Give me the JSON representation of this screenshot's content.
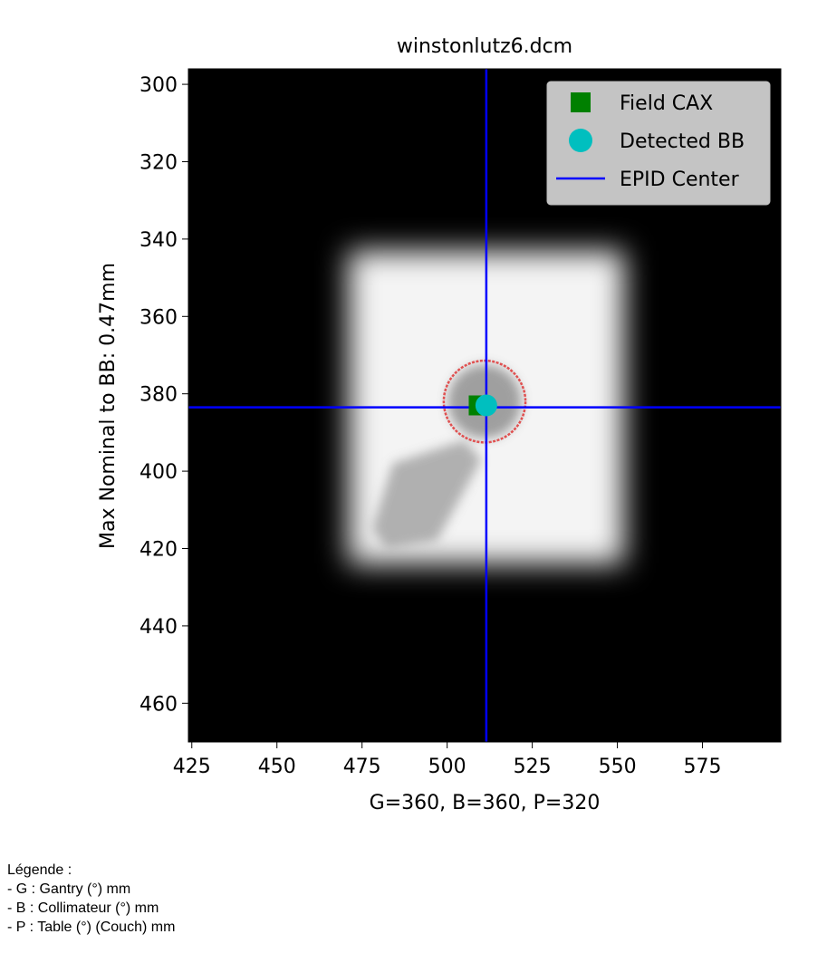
{
  "chart_data": {
    "type": "scatter",
    "title": "winstonlutz6.dcm",
    "xlabel": "G=360, B=360, P=320",
    "ylabel": "Max Nominal to BB: 0.47mm",
    "xlim": [
      424,
      598
    ],
    "ylim": [
      470,
      296
    ],
    "y_inverted": true,
    "xticks": [
      425,
      450,
      475,
      500,
      525,
      550,
      575
    ],
    "yticks": [
      300,
      320,
      340,
      360,
      380,
      400,
      420,
      440,
      460
    ],
    "image": {
      "description": "EPID field image: dark background, bright square radiation field",
      "field_x": [
        471,
        552
      ],
      "field_y": [
        343,
        424
      ]
    },
    "series": [
      {
        "name": "Field CAX",
        "marker": "square",
        "color": "#008000",
        "x": [
          509
        ],
        "y": [
          383
        ]
      },
      {
        "name": "Detected BB",
        "marker": "circle",
        "color": "#00bfbf",
        "x": [
          511.5
        ],
        "y": [
          383
        ]
      },
      {
        "name": "EPID Center",
        "marker": "line",
        "color": "#0000ff",
        "x": [
          511.5
        ],
        "y": [
          383.5
        ]
      }
    ],
    "bb_contour": {
      "color": "#e05050",
      "cx": 511,
      "cy": 382,
      "r": 12
    },
    "legend": {
      "position": "top-right",
      "entries": [
        "Field CAX",
        "Detected BB",
        "EPID Center"
      ]
    },
    "grid": false
  },
  "caption": {
    "heading": "Légende :",
    "items": [
      "- G : Gantry (°) mm",
      "- B : Collimateur (°) mm",
      "- P : Table (°) (Couch) mm"
    ]
  }
}
